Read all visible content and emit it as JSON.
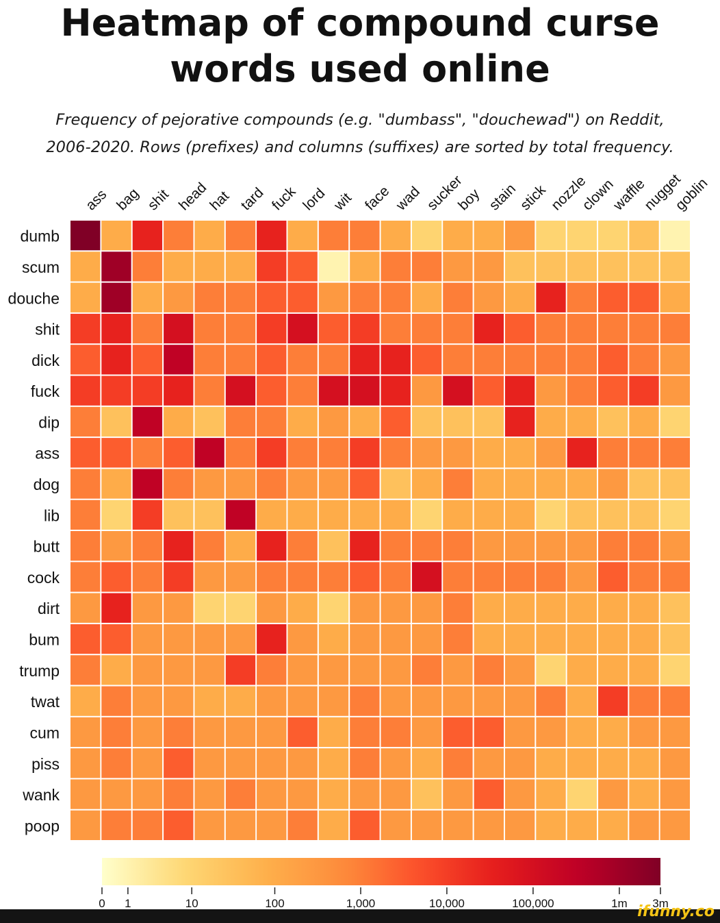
{
  "title": "Heatmap of compound curse words used online",
  "subtitle_line1": "Frequency of pejorative compounds (e.g. \"dumbass\", \"douchewad\") on Reddit,",
  "subtitle_line2": "2006-2020. Rows (prefixes) and columns (suffixes) are sorted by total frequency.",
  "watermark": "ifunny.co",
  "colors": {
    "scale": [
      "#ffffcc",
      "#fed976",
      "#feb24c",
      "#fd8d3c",
      "#fc4e2a",
      "#e31a1c",
      "#bd0026",
      "#800026"
    ],
    "cell_border": "#ffffff"
  },
  "chart_data": {
    "type": "heatmap",
    "title": "Heatmap of compound curse words used online",
    "x_categories": [
      "ass",
      "bag",
      "shit",
      "head",
      "hat",
      "tard",
      "fuck",
      "lord",
      "wit",
      "face",
      "wad",
      "sucker",
      "boy",
      "stain",
      "stick",
      "nozzle",
      "clown",
      "waffle",
      "nugget",
      "goblin"
    ],
    "y_categories": [
      "dumb",
      "scum",
      "douche",
      "shit",
      "dick",
      "fuck",
      "dip",
      "ass",
      "dog",
      "lib",
      "butt",
      "cock",
      "dirt",
      "bum",
      "trump",
      "twat",
      "cum",
      "piss",
      "wank",
      "poop"
    ],
    "values": [
      [
        3000000,
        100,
        30000,
        1000,
        100,
        1000,
        30000,
        100,
        1000,
        1000,
        100,
        10,
        100,
        100,
        300,
        10,
        10,
        10,
        30,
        1
      ],
      [
        100,
        1000000,
        1000,
        100,
        100,
        100,
        10000,
        3000,
        1,
        100,
        1000,
        1000,
        300,
        300,
        30,
        30,
        30,
        30,
        30,
        30
      ],
      [
        100,
        1000000,
        100,
        300,
        1000,
        1000,
        3000,
        3000,
        300,
        1000,
        1000,
        100,
        1000,
        300,
        100,
        30000,
        1000,
        3000,
        3000,
        100
      ],
      [
        10000,
        30000,
        1000,
        100000,
        1000,
        1000,
        10000,
        100000,
        3000,
        10000,
        1000,
        1000,
        1000,
        30000,
        3000,
        1000,
        1000,
        1000,
        1000,
        1000
      ],
      [
        3000,
        30000,
        3000,
        300000,
        1000,
        1000,
        3000,
        1000,
        1000,
        30000,
        30000,
        3000,
        1000,
        1000,
        1000,
        1000,
        1000,
        3000,
        1000,
        300
      ],
      [
        10000,
        10000,
        10000,
        30000,
        1000,
        100000,
        3000,
        1000,
        100000,
        100000,
        30000,
        300,
        100000,
        3000,
        30000,
        300,
        1000,
        3000,
        10000,
        300
      ],
      [
        1000,
        30,
        300000,
        100,
        30,
        1000,
        1000,
        100,
        300,
        100,
        3000,
        30,
        30,
        30,
        30000,
        100,
        100,
        30,
        100,
        10
      ],
      [
        3000,
        3000,
        1000,
        3000,
        300000,
        1000,
        10000,
        1000,
        1000,
        10000,
        1000,
        300,
        300,
        100,
        100,
        300,
        30000,
        1000,
        1000,
        1000
      ],
      [
        1000,
        100,
        300000,
        1000,
        300,
        300,
        1000,
        300,
        300,
        3000,
        30,
        100,
        1000,
        100,
        100,
        100,
        100,
        300,
        30,
        30
      ],
      [
        1000,
        10,
        10000,
        30,
        30,
        300000,
        100,
        100,
        100,
        100,
        100,
        10,
        100,
        100,
        100,
        10,
        30,
        30,
        30,
        10
      ],
      [
        1000,
        300,
        1000,
        30000,
        1000,
        100,
        30000,
        1000,
        30,
        30000,
        1000,
        1000,
        1000,
        300,
        300,
        300,
        300,
        1000,
        1000,
        300
      ],
      [
        1000,
        3000,
        1000,
        10000,
        300,
        300,
        1000,
        1000,
        1000,
        3000,
        1000,
        100000,
        1000,
        1000,
        1000,
        1000,
        300,
        3000,
        1000,
        1000
      ],
      [
        300,
        30000,
        300,
        300,
        10,
        10,
        300,
        100,
        10,
        300,
        300,
        300,
        1000,
        100,
        100,
        100,
        100,
        100,
        100,
        30
      ],
      [
        3000,
        3000,
        300,
        300,
        300,
        300,
        30000,
        300,
        100,
        300,
        300,
        300,
        1000,
        100,
        100,
        100,
        100,
        100,
        100,
        30
      ],
      [
        1000,
        100,
        300,
        300,
        300,
        10000,
        1000,
        300,
        300,
        300,
        300,
        1000,
        300,
        1000,
        300,
        10,
        100,
        100,
        100,
        10
      ],
      [
        100,
        1000,
        300,
        300,
        100,
        100,
        300,
        300,
        300,
        1000,
        300,
        300,
        300,
        300,
        300,
        1000,
        100,
        10000,
        1000,
        1000
      ],
      [
        300,
        1000,
        300,
        1000,
        300,
        300,
        300,
        3000,
        100,
        1000,
        1000,
        300,
        3000,
        3000,
        300,
        300,
        100,
        100,
        300,
        300
      ],
      [
        300,
        1000,
        300,
        3000,
        300,
        300,
        300,
        300,
        100,
        1000,
        300,
        100,
        1000,
        300,
        300,
        100,
        100,
        100,
        100,
        300
      ],
      [
        300,
        300,
        300,
        1000,
        300,
        1000,
        300,
        300,
        100,
        300,
        300,
        30,
        300,
        3000,
        300,
        100,
        10,
        300,
        100,
        300
      ],
      [
        300,
        1000,
        1000,
        3000,
        300,
        300,
        300,
        1000,
        100,
        3000,
        300,
        300,
        300,
        300,
        300,
        100,
        100,
        100,
        300,
        300
      ]
    ],
    "colorbar": {
      "scale": "log",
      "range": [
        0,
        3000000
      ],
      "tick_labels": [
        "0",
        "1",
        "10",
        "100",
        "1,000",
        "10,000",
        "100,000",
        "1m",
        "3m"
      ],
      "tick_values": [
        0,
        1,
        10,
        100,
        1000,
        10000,
        100000,
        1000000,
        3000000
      ]
    }
  }
}
